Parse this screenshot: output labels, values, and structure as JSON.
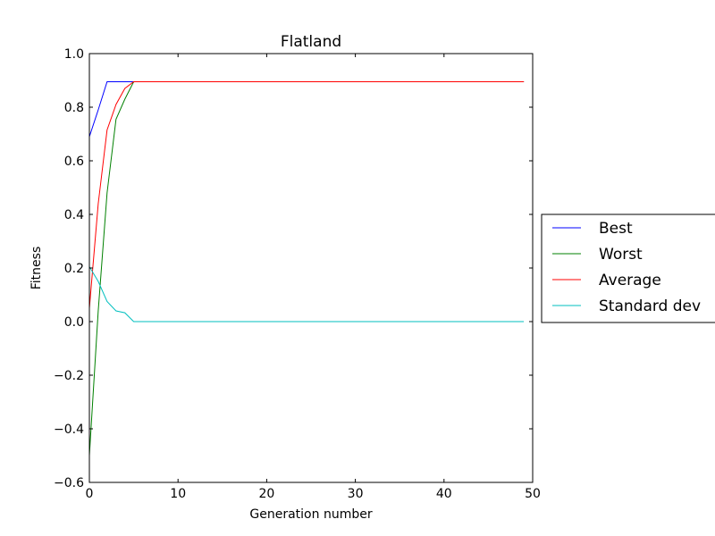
{
  "chart_data": {
    "type": "line",
    "title": "Flatland",
    "xlabel": "Generation number",
    "ylabel": "Fitness",
    "xlim": [
      0,
      50
    ],
    "ylim": [
      -0.6,
      1.0
    ],
    "xticks": [
      0,
      10,
      20,
      30,
      40,
      50
    ],
    "yticks": [
      -0.6,
      -0.4,
      -0.2,
      0.0,
      0.2,
      0.4,
      0.6,
      0.8,
      1.0
    ],
    "grid": false,
    "legend_position": "right-outside",
    "series": [
      {
        "name": "Best",
        "color": "#0000ff",
        "x": [
          0,
          1,
          2,
          3,
          4,
          5,
          6,
          10,
          20,
          30,
          40,
          49
        ],
        "y": [
          0.69,
          0.79,
          0.895,
          0.895,
          0.895,
          0.895,
          0.895,
          0.895,
          0.895,
          0.895,
          0.895,
          0.895
        ]
      },
      {
        "name": "Worst",
        "color": "#008000",
        "x": [
          0,
          1,
          2,
          3,
          4,
          5,
          6,
          10,
          20,
          30,
          40,
          49
        ],
        "y": [
          -0.5,
          0.04,
          0.48,
          0.755,
          0.83,
          0.895,
          0.895,
          0.895,
          0.895,
          0.895,
          0.895,
          0.895
        ]
      },
      {
        "name": "Average",
        "color": "#ff0000",
        "x": [
          0,
          1,
          2,
          3,
          4,
          5,
          6,
          10,
          20,
          30,
          40,
          49
        ],
        "y": [
          0.05,
          0.44,
          0.715,
          0.81,
          0.87,
          0.895,
          0.895,
          0.895,
          0.895,
          0.895,
          0.895,
          0.895
        ]
      },
      {
        "name": "Standard dev",
        "color": "#00bfbf",
        "x": [
          0,
          1,
          2,
          3,
          4,
          5,
          6,
          10,
          20,
          30,
          40,
          49
        ],
        "y": [
          0.205,
          0.15,
          0.075,
          0.04,
          0.033,
          0.0,
          0.0,
          0.0,
          0.0,
          0.0,
          0.0,
          0.0
        ]
      }
    ]
  }
}
